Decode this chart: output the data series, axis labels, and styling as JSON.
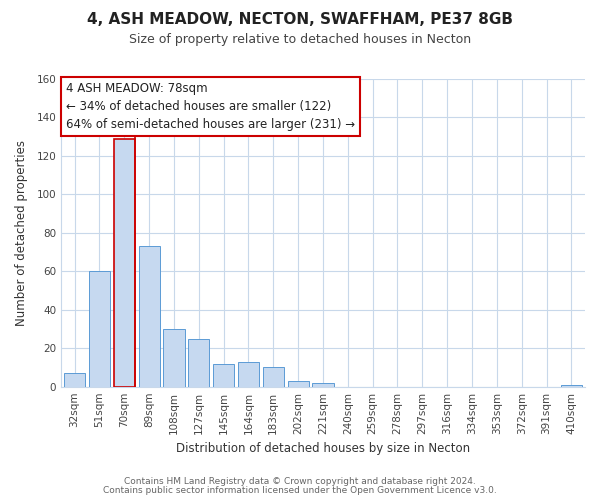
{
  "title": "4, ASH MEADOW, NECTON, SWAFFHAM, PE37 8GB",
  "subtitle": "Size of property relative to detached houses in Necton",
  "xlabel": "Distribution of detached houses by size in Necton",
  "ylabel": "Number of detached properties",
  "bar_color": "#c6d9f0",
  "bar_edge_color": "#5b9bd5",
  "highlight_bar_edge_color": "#cc0000",
  "categories": [
    "32sqm",
    "51sqm",
    "70sqm",
    "89sqm",
    "108sqm",
    "127sqm",
    "145sqm",
    "164sqm",
    "183sqm",
    "202sqm",
    "221sqm",
    "240sqm",
    "259sqm",
    "278sqm",
    "297sqm",
    "316sqm",
    "334sqm",
    "353sqm",
    "372sqm",
    "391sqm",
    "410sqm"
  ],
  "values": [
    7,
    60,
    129,
    73,
    30,
    25,
    12,
    13,
    10,
    3,
    2,
    0,
    0,
    0,
    0,
    0,
    0,
    0,
    0,
    0,
    1
  ],
  "highlight_index": 2,
  "annotation_text1": "4 ASH MEADOW: 78sqm",
  "annotation_text2": "← 34% of detached houses are smaller (122)",
  "annotation_text3": "64% of semi-detached houses are larger (231) →",
  "ylim": [
    0,
    160
  ],
  "yticks": [
    0,
    20,
    40,
    60,
    80,
    100,
    120,
    140,
    160
  ],
  "footer1": "Contains HM Land Registry data © Crown copyright and database right 2024.",
  "footer2": "Contains public sector information licensed under the Open Government Licence v3.0.",
  "background_color": "#ffffff",
  "grid_color": "#c8d8ea",
  "annotation_box_edge": "#cc0000",
  "title_fontsize": 11,
  "subtitle_fontsize": 9,
  "axis_label_fontsize": 8.5,
  "tick_fontsize": 7.5,
  "annotation_fontsize": 8.5,
  "footer_fontsize": 6.5
}
